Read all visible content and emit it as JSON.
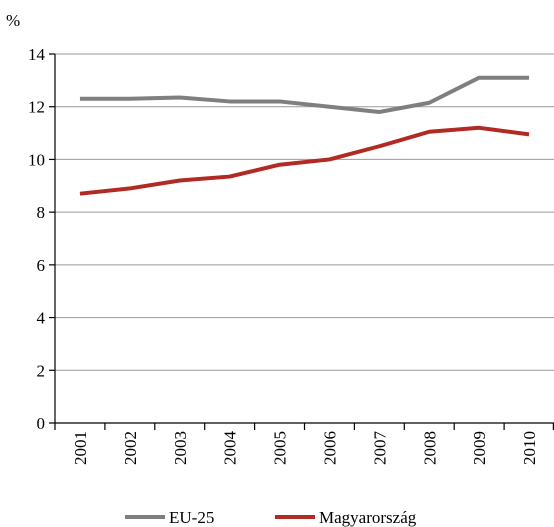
{
  "chart_data": {
    "type": "line",
    "y_axis_label": "%",
    "categories": [
      "2001",
      "2002",
      "2003",
      "2004",
      "2005",
      "2006",
      "2007",
      "2008",
      "2009",
      "2010"
    ],
    "series": [
      {
        "name": "EU-25",
        "color": "#7f7f7f",
        "values": [
          12.3,
          12.3,
          12.35,
          12.2,
          12.2,
          12.0,
          11.8,
          12.15,
          13.1,
          13.1
        ]
      },
      {
        "name": "Magyarország",
        "color": "#b22a24",
        "values": [
          8.7,
          8.9,
          9.2,
          9.35,
          9.8,
          10.0,
          10.5,
          11.05,
          11.2,
          10.95
        ]
      }
    ],
    "ylim": [
      0,
      14
    ],
    "yticks": [
      0,
      2,
      4,
      6,
      8,
      10,
      12,
      14
    ],
    "grid": true
  }
}
